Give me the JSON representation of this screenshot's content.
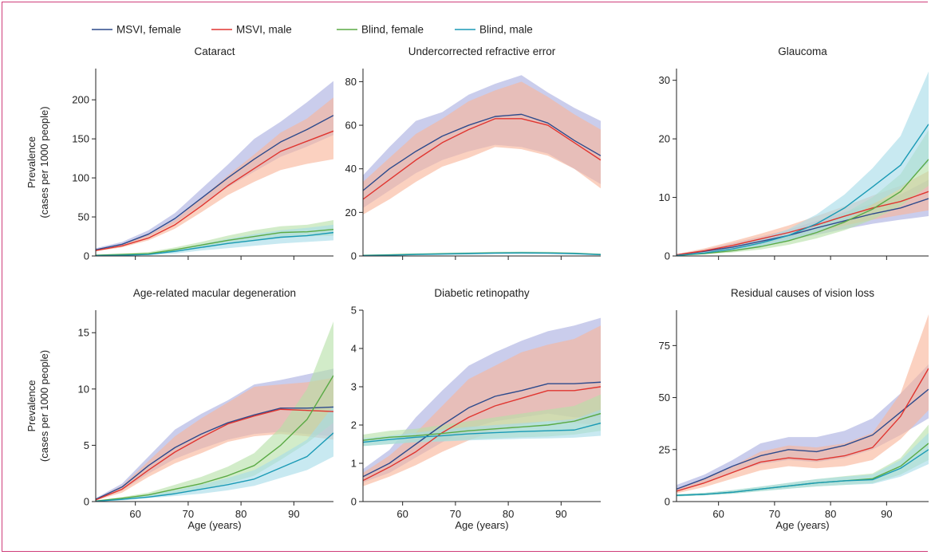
{
  "legend": [
    {
      "name": "MSVI, female",
      "color": "#2d4a8c"
    },
    {
      "name": "MSVI, male",
      "color": "#e03530"
    },
    {
      "name": "Blind, female",
      "color": "#5aaa45"
    },
    {
      "name": "Blind, male",
      "color": "#1a9ab5"
    }
  ],
  "band_colors": [
    "#a9aee0",
    "#f8b49a",
    "#b6e0a8",
    "#a6dbe8"
  ],
  "x_label": "Age (years)",
  "y_label_line1": "Prevalence",
  "y_label_line2": "(cases per 1000 people)",
  "chart_data": [
    {
      "type": "line",
      "title": "Cataract",
      "x": [
        52.5,
        57.5,
        62.5,
        67.5,
        72.5,
        77.5,
        82.5,
        87.5,
        92.5,
        97.5
      ],
      "xlim": [
        52.5,
        97.5
      ],
      "xticks": [
        60,
        70,
        80,
        90
      ],
      "ylim": [
        0,
        240
      ],
      "yticks": [
        0,
        50,
        100,
        150,
        200
      ],
      "series": [
        {
          "name": "MSVI, female",
          "values": [
            8,
            15,
            28,
            48,
            74,
            100,
            124,
            146,
            162,
            180
          ],
          "lower": [
            7,
            13,
            25,
            42,
            65,
            88,
            108,
            127,
            140,
            155
          ],
          "upper": [
            10,
            18,
            33,
            55,
            86,
            117,
            150,
            172,
            197,
            224
          ]
        },
        {
          "name": "MSVI, male",
          "values": [
            7,
            13,
            23,
            40,
            64,
            90,
            112,
            134,
            147,
            160
          ],
          "lower": [
            6,
            11,
            20,
            35,
            56,
            78,
            95,
            110,
            118,
            124
          ],
          "upper": [
            8,
            15,
            27,
            46,
            74,
            103,
            130,
            158,
            176,
            203
          ]
        },
        {
          "name": "Blind, female",
          "values": [
            1,
            2,
            3,
            8,
            14,
            20,
            25,
            30,
            31,
            34
          ],
          "lower": [
            0.5,
            1,
            2,
            5,
            10,
            15,
            19,
            23,
            25,
            26
          ],
          "upper": [
            1.5,
            3,
            5,
            11,
            18,
            26,
            33,
            38,
            40,
            46
          ]
        },
        {
          "name": "Blind, male",
          "values": [
            0.5,
            1,
            2,
            6,
            11,
            16,
            20,
            24,
            26,
            30
          ],
          "lower": [
            0.3,
            0.5,
            1,
            3,
            7,
            10,
            13,
            16,
            18,
            20
          ],
          "upper": [
            1,
            2,
            3,
            8,
            15,
            22,
            28,
            33,
            36,
            40
          ]
        }
      ]
    },
    {
      "type": "line",
      "title": "Undercorrected refractive error",
      "x": [
        52.5,
        57.5,
        62.5,
        67.5,
        72.5,
        77.5,
        82.5,
        87.5,
        92.5,
        97.5
      ],
      "xlim": [
        52.5,
        97.5
      ],
      "xticks": [
        60,
        70,
        80,
        90
      ],
      "ylim": [
        0,
        86
      ],
      "yticks": [
        0,
        20,
        40,
        60,
        80
      ],
      "series": [
        {
          "name": "MSVI, female",
          "values": [
            30,
            40,
            48,
            55,
            60,
            64,
            65,
            61,
            53,
            46
          ],
          "lower": [
            22,
            30,
            38,
            44,
            48,
            51,
            50,
            47,
            40,
            33
          ],
          "upper": [
            37,
            50,
            62,
            66,
            74,
            79,
            83,
            75,
            68,
            62
          ]
        },
        {
          "name": "MSVI, male",
          "values": [
            26,
            35,
            44,
            52,
            58,
            63,
            63,
            60,
            52,
            44
          ],
          "lower": [
            19,
            26,
            34,
            41,
            45,
            50,
            49,
            46,
            40,
            31
          ],
          "upper": [
            34,
            45,
            56,
            63,
            71,
            76,
            80,
            73,
            65,
            58
          ]
        },
        {
          "name": "Blind, female",
          "values": [
            0.3,
            0.5,
            0.8,
            1.0,
            1.2,
            1.4,
            1.5,
            1.4,
            1.2,
            0.7
          ],
          "lower": [
            0.1,
            0.2,
            0.4,
            0.6,
            0.8,
            1.0,
            1.1,
            1.0,
            0.8,
            0.4
          ],
          "upper": [
            0.5,
            0.8,
            1.2,
            1.5,
            1.7,
            1.9,
            2.0,
            1.9,
            1.6,
            1.0
          ]
        },
        {
          "name": "Blind, male",
          "values": [
            0.2,
            0.4,
            0.7,
            0.9,
            1.1,
            1.3,
            1.4,
            1.3,
            1.1,
            0.6
          ],
          "lower": [
            0.1,
            0.2,
            0.3,
            0.5,
            0.7,
            0.9,
            1.0,
            0.9,
            0.7,
            0.3
          ],
          "upper": [
            0.4,
            0.7,
            1.1,
            1.4,
            1.6,
            1.8,
            1.9,
            1.8,
            1.5,
            0.9
          ]
        }
      ]
    },
    {
      "type": "line",
      "title": "Glaucoma",
      "x": [
        52.5,
        57.5,
        62.5,
        67.5,
        72.5,
        77.5,
        82.5,
        87.5,
        92.5,
        97.5
      ],
      "xlim": [
        52.5,
        97.5
      ],
      "xticks": [
        60,
        70,
        80,
        90
      ],
      "ylim": [
        0,
        32
      ],
      "yticks": [
        0,
        10,
        20,
        30
      ],
      "series": [
        {
          "name": "MSVI, female",
          "values": [
            0.2,
            0.8,
            1.5,
            2.5,
            3.5,
            4.8,
            6.0,
            7.2,
            8.2,
            9.8
          ],
          "lower": [
            0.1,
            0.5,
            1.0,
            1.8,
            2.7,
            3.6,
            4.6,
            5.5,
            6.2,
            6.8
          ],
          "upper": [
            0.3,
            1.1,
            2.2,
            3.3,
            4.5,
            6.0,
            7.5,
            9.0,
            10.5,
            13.0
          ]
        },
        {
          "name": "MSVI, male",
          "values": [
            0.2,
            0.9,
            1.8,
            2.9,
            4.0,
            5.3,
            6.8,
            8.2,
            9.3,
            11.0
          ],
          "lower": [
            0.1,
            0.6,
            1.2,
            2.1,
            3.0,
            4.0,
            5.2,
            6.2,
            7.0,
            7.8
          ],
          "upper": [
            0.3,
            1.3,
            2.5,
            3.8,
            5.2,
            6.8,
            8.5,
            10.3,
            12.0,
            14.5
          ]
        },
        {
          "name": "Blind, female",
          "values": [
            0.1,
            0.4,
            0.9,
            1.6,
            2.6,
            4.0,
            5.8,
            8.0,
            11.0,
            16.5
          ],
          "lower": [
            0.05,
            0.3,
            0.6,
            1.1,
            1.9,
            3.0,
            4.4,
            6.2,
            8.5,
            12.0
          ],
          "upper": [
            0.2,
            0.6,
            1.2,
            2.1,
            3.4,
            5.1,
            7.3,
            10.0,
            14.0,
            21.5
          ]
        },
        {
          "name": "Blind, male",
          "values": [
            0.1,
            0.5,
            1.2,
            2.2,
            3.5,
            5.5,
            8.2,
            11.8,
            15.5,
            22.5
          ],
          "lower": [
            0.05,
            0.3,
            0.8,
            1.5,
            2.5,
            4.0,
            6.0,
            8.8,
            11.5,
            16.0
          ],
          "upper": [
            0.2,
            0.7,
            1.6,
            2.9,
            4.6,
            7.1,
            10.5,
            15.0,
            20.5,
            31.5
          ]
        }
      ]
    },
    {
      "type": "line",
      "title": "Age-related macular degeneration",
      "x": [
        52.5,
        57.5,
        62.5,
        67.5,
        72.5,
        77.5,
        82.5,
        87.5,
        92.5,
        97.5
      ],
      "xlim": [
        52.5,
        97.5
      ],
      "xticks": [
        60,
        70,
        80,
        90
      ],
      "ylim": [
        0,
        17
      ],
      "yticks": [
        0,
        5,
        10,
        15
      ],
      "series": [
        {
          "name": "MSVI, female",
          "values": [
            0.2,
            1.3,
            3.2,
            4.8,
            6.0,
            7.0,
            7.7,
            8.3,
            8.3,
            8.4
          ],
          "lower": [
            0.1,
            1.0,
            2.5,
            3.8,
            4.7,
            5.5,
            6.0,
            6.2,
            6.0,
            5.8
          ],
          "upper": [
            0.3,
            1.6,
            4.0,
            6.4,
            7.8,
            9.0,
            10.4,
            10.8,
            11.3,
            11.8
          ]
        },
        {
          "name": "MSVI, male",
          "values": [
            0.15,
            1.1,
            2.8,
            4.4,
            5.7,
            6.9,
            7.6,
            8.2,
            8.1,
            8.0
          ],
          "lower": [
            0.1,
            0.8,
            2.2,
            3.4,
            4.3,
            5.3,
            5.8,
            6.0,
            5.8,
            5.5
          ],
          "upper": [
            0.25,
            1.4,
            3.6,
            5.8,
            7.4,
            8.8,
            10.2,
            10.4,
            10.6,
            11.0
          ]
        },
        {
          "name": "Blind, female",
          "values": [
            0.05,
            0.3,
            0.6,
            1.1,
            1.6,
            2.3,
            3.2,
            5.0,
            7.3,
            11.2
          ],
          "lower": [
            0.02,
            0.2,
            0.4,
            0.7,
            1.1,
            1.6,
            2.3,
            3.7,
            5.2,
            7.0
          ],
          "upper": [
            0.1,
            0.4,
            0.8,
            1.5,
            2.2,
            3.1,
            4.3,
            6.6,
            10.0,
            16.0
          ]
        },
        {
          "name": "Blind, male",
          "values": [
            0.03,
            0.2,
            0.4,
            0.7,
            1.1,
            1.5,
            2.0,
            3.0,
            4.0,
            6.1
          ],
          "lower": [
            0.01,
            0.1,
            0.3,
            0.5,
            0.7,
            1.0,
            1.4,
            2.1,
            2.8,
            4.0
          ],
          "upper": [
            0.05,
            0.3,
            0.6,
            1.0,
            1.5,
            2.1,
            2.8,
            4.1,
            5.5,
            8.5
          ]
        }
      ]
    },
    {
      "type": "line",
      "title": "Diabetic retinopathy",
      "x": [
        52.5,
        57.5,
        62.5,
        67.5,
        72.5,
        77.5,
        82.5,
        87.5,
        92.5,
        97.5
      ],
      "xlim": [
        52.5,
        97.5
      ],
      "xticks": [
        60,
        70,
        80,
        90
      ],
      "ylim": [
        0,
        5
      ],
      "yticks": [
        0,
        1,
        2,
        3,
        4,
        5
      ],
      "series": [
        {
          "name": "MSVI, female",
          "values": [
            0.65,
            1.0,
            1.5,
            2.0,
            2.45,
            2.75,
            2.9,
            3.08,
            3.08,
            3.12
          ],
          "lower": [
            0.5,
            0.75,
            1.15,
            1.55,
            1.9,
            2.1,
            2.2,
            2.3,
            2.2,
            2.2
          ],
          "upper": [
            0.85,
            1.35,
            2.2,
            2.9,
            3.55,
            3.9,
            4.2,
            4.45,
            4.6,
            4.8
          ]
        },
        {
          "name": "MSVI, male",
          "values": [
            0.55,
            0.9,
            1.3,
            1.8,
            2.2,
            2.5,
            2.7,
            2.9,
            2.9,
            3.0
          ],
          "lower": [
            0.4,
            0.65,
            0.95,
            1.3,
            1.6,
            1.85,
            2.0,
            2.1,
            2.05,
            2.0
          ],
          "upper": [
            0.75,
            1.2,
            1.8,
            2.5,
            3.2,
            3.55,
            3.9,
            4.1,
            4.25,
            4.6
          ]
        },
        {
          "name": "Blind, female",
          "values": [
            1.6,
            1.68,
            1.72,
            1.78,
            1.85,
            1.9,
            1.95,
            2.0,
            2.1,
            2.3
          ],
          "lower": [
            1.45,
            1.5,
            1.55,
            1.58,
            1.62,
            1.65,
            1.68,
            1.7,
            1.75,
            1.85
          ],
          "upper": [
            1.75,
            1.85,
            1.9,
            2.0,
            2.1,
            2.2,
            2.3,
            2.4,
            2.5,
            2.8
          ]
        },
        {
          "name": "Blind, male",
          "values": [
            1.55,
            1.62,
            1.68,
            1.72,
            1.77,
            1.8,
            1.83,
            1.85,
            1.87,
            2.05
          ],
          "lower": [
            1.45,
            1.5,
            1.55,
            1.57,
            1.6,
            1.62,
            1.64,
            1.65,
            1.67,
            1.72
          ],
          "upper": [
            1.65,
            1.72,
            1.8,
            1.88,
            1.95,
            2.0,
            2.05,
            2.1,
            2.15,
            2.4
          ]
        }
      ]
    },
    {
      "type": "line",
      "title": "Residual causes of vision loss",
      "x": [
        52.5,
        57.5,
        62.5,
        67.5,
        72.5,
        77.5,
        82.5,
        87.5,
        92.5,
        97.5
      ],
      "xlim": [
        52.5,
        97.5
      ],
      "xticks": [
        60,
        70,
        80,
        90
      ],
      "ylim": [
        0,
        92
      ],
      "yticks": [
        0,
        25,
        50,
        75
      ],
      "series": [
        {
          "name": "MSVI, female",
          "values": [
            6,
            11,
            17,
            22,
            25,
            24,
            27,
            32,
            43,
            54
          ],
          "lower": [
            5,
            9,
            14,
            18,
            20,
            19,
            21,
            25,
            32,
            40
          ],
          "upper": [
            8,
            13,
            20,
            28,
            31,
            31,
            34,
            40,
            52,
            66
          ]
        },
        {
          "name": "MSVI, male",
          "values": [
            5,
            9,
            14,
            19,
            21,
            20,
            22,
            26,
            41,
            64
          ],
          "lower": [
            4,
            7,
            11,
            15,
            17,
            16,
            17,
            20,
            30,
            44
          ],
          "upper": [
            6,
            11,
            17,
            24,
            27,
            26,
            28,
            33,
            52,
            90
          ]
        },
        {
          "name": "Blind, female",
          "values": [
            3,
            3.5,
            4.5,
            6,
            7.5,
            9,
            10,
            11,
            17,
            28
          ],
          "lower": [
            2.5,
            3,
            3.8,
            5,
            6.2,
            7.3,
            8,
            8.8,
            13,
            20
          ],
          "upper": [
            3.5,
            4.2,
            5.5,
            7.2,
            9,
            10.8,
            12.2,
            13.5,
            21,
            37
          ]
        },
        {
          "name": "Blind, male",
          "values": [
            3,
            3.5,
            4.5,
            6,
            7.5,
            9,
            10,
            10.5,
            16,
            25
          ],
          "lower": [
            2.5,
            3,
            3.8,
            5,
            6.2,
            7.3,
            8,
            8.5,
            12,
            18
          ],
          "upper": [
            3.5,
            4.2,
            5.5,
            7.2,
            9,
            10.8,
            12,
            13,
            20,
            33
          ]
        }
      ]
    }
  ]
}
